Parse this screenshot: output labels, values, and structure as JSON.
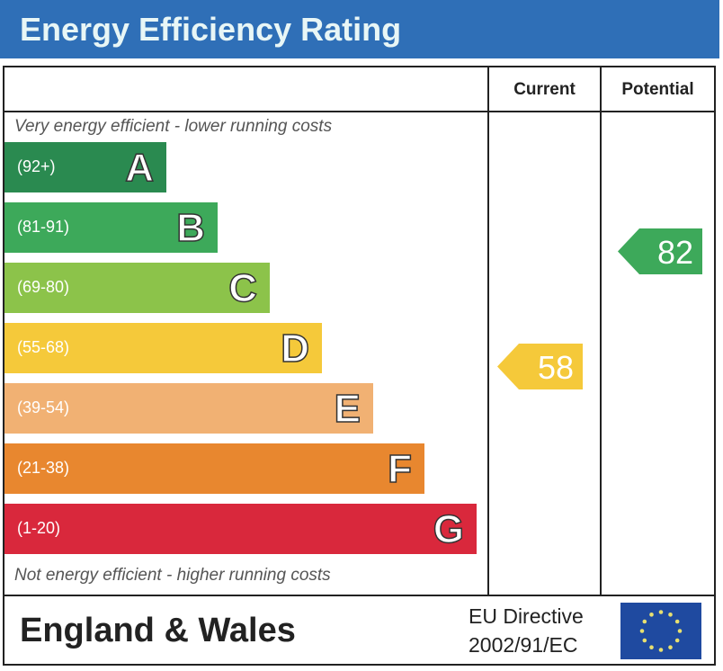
{
  "chart_data": {
    "type": "bar",
    "title": "Energy Efficiency Rating",
    "columns": [
      "Current",
      "Potential"
    ],
    "top_note": "Very energy efficient - lower running costs",
    "bottom_note": "Not energy efficient - higher running costs",
    "bands": [
      {
        "letter": "A",
        "range": "(92+)",
        "color": "#2a8a50"
      },
      {
        "letter": "B",
        "range": "(81-91)",
        "color": "#3da95a"
      },
      {
        "letter": "C",
        "range": "(69-80)",
        "color": "#8cc34a"
      },
      {
        "letter": "D",
        "range": "(55-68)",
        "color": "#f5c93a"
      },
      {
        "letter": "E",
        "range": "(39-54)",
        "color": "#f1b173"
      },
      {
        "letter": "F",
        "range": "(21-38)",
        "color": "#e8872f"
      },
      {
        "letter": "G",
        "range": "(1-20)",
        "color": "#d9283c"
      }
    ],
    "current": {
      "value": "58",
      "band": "D",
      "color": "#f5c93a"
    },
    "potential": {
      "value": "82",
      "band": "B",
      "color": "#3da95a"
    }
  },
  "footer": {
    "region": "England & Wales",
    "directive_line1": "EU Directive",
    "directive_line2": "2002/91/EC",
    "flag_icon": "eu-flag-icon"
  }
}
